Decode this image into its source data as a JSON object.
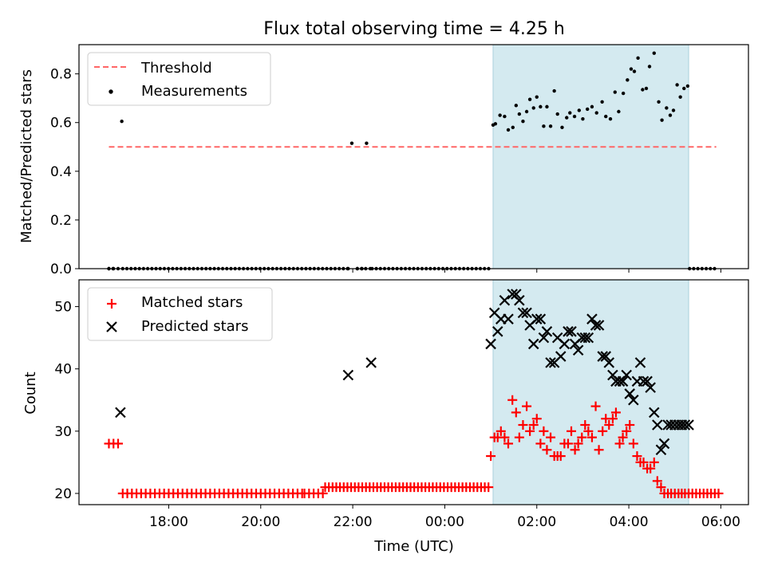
{
  "title": "Flux total observing time = 4.25 h",
  "chart_data": [
    {
      "type": "scatter",
      "ylabel": "Matched/Predicted stars",
      "ylim": [
        0.0,
        0.92
      ],
      "yticks": [
        "0.0",
        "0.2",
        "0.4",
        "0.6",
        "0.8"
      ],
      "x_range_hours": [
        16.05,
        30.6
      ],
      "shaded_interval_hours": [
        25.05,
        29.3
      ],
      "threshold": {
        "name": "Threshold",
        "value": 0.5,
        "x_start_hours": 16.7,
        "x_end_hours": 29.9,
        "color": "#ff6666"
      },
      "legend": {
        "position": "top-left",
        "entries": [
          "Threshold",
          "Measurements"
        ]
      },
      "series": [
        {
          "name": "Measurements",
          "color": "#000000",
          "x_hours": [
            16.7,
            16.8,
            16.9,
            16.98,
            21.9,
            21.98,
            22.1,
            22.2,
            22.3,
            22.38,
            25.05,
            25.1,
            25.2,
            25.3,
            25.38,
            25.48,
            25.55,
            25.62,
            25.7,
            25.78,
            25.85,
            25.93,
            26.0,
            26.08,
            26.15,
            26.22,
            26.3,
            26.38,
            26.45,
            26.55,
            26.65,
            26.72,
            26.82,
            26.92,
            27.0,
            27.1,
            27.2,
            27.3,
            27.42,
            27.5,
            27.6,
            27.7,
            27.78,
            27.88,
            27.97,
            28.05,
            28.12,
            28.2,
            28.3,
            28.38,
            28.45,
            28.55,
            28.65,
            28.72,
            28.82,
            28.9,
            28.97,
            29.05,
            29.12,
            29.2,
            29.28
          ],
          "y": [
            0.0,
            0.0,
            0.0,
            0.605,
            0.0,
            0.515,
            0.0,
            0.0,
            0.515,
            0.0,
            0.59,
            0.595,
            0.63,
            0.625,
            0.57,
            0.58,
            0.67,
            0.635,
            0.605,
            0.645,
            0.695,
            0.66,
            0.705,
            0.665,
            0.585,
            0.665,
            0.585,
            0.73,
            0.635,
            0.58,
            0.62,
            0.64,
            0.625,
            0.65,
            0.615,
            0.655,
            0.665,
            0.64,
            0.685,
            0.625,
            0.615,
            0.725,
            0.645,
            0.72,
            0.775,
            0.82,
            0.81,
            0.865,
            0.735,
            0.74,
            0.83,
            0.885,
            0.685,
            0.61,
            0.66,
            0.63,
            0.65,
            0.755,
            0.705,
            0.74,
            0.75
          ]
        }
      ],
      "zero_runs_hours": [
        [
          16.7,
          16.88
        ],
        [
          17.0,
          21.9
        ],
        [
          22.1,
          22.32
        ],
        [
          22.42,
          25.0
        ],
        [
          29.32,
          29.9
        ]
      ]
    },
    {
      "type": "scatter",
      "ylabel": "Count",
      "xlabel": "Time (UTC)",
      "ylim": [
        18.2,
        54.3
      ],
      "yticks": [
        "20",
        "30",
        "40",
        "50"
      ],
      "xticks": [
        "18:00",
        "20:00",
        "22:00",
        "00:00",
        "02:00",
        "04:00",
        "06:00"
      ],
      "x_range_hours": [
        16.05,
        30.6
      ],
      "shaded_interval_hours": [
        25.05,
        29.3
      ],
      "legend": {
        "position": "top-left",
        "entries": [
          "Matched stars",
          "Predicted stars"
        ]
      },
      "series": [
        {
          "name": "Matched stars",
          "marker": "+",
          "color": "#ff0000",
          "x_hours": [
            16.7,
            16.8,
            16.9,
            25.0,
            25.08,
            25.15,
            25.22,
            25.3,
            25.38,
            25.47,
            25.55,
            25.62,
            25.7,
            25.78,
            25.85,
            25.93,
            26.0,
            26.08,
            26.15,
            26.22,
            26.3,
            26.38,
            26.45,
            26.52,
            26.6,
            26.68,
            26.75,
            26.83,
            26.9,
            26.98,
            27.05,
            27.12,
            27.2,
            27.28,
            27.35,
            27.43,
            27.5,
            27.57,
            27.65,
            27.72,
            27.8,
            27.87,
            27.95,
            28.02,
            28.1,
            28.18,
            28.25,
            28.32,
            28.4,
            28.47,
            28.55,
            28.62,
            28.7,
            28.77,
            28.85,
            28.92,
            29.0,
            29.08,
            29.15,
            29.22,
            29.3
          ],
          "y": [
            28,
            28,
            28,
            26,
            29,
            29,
            30,
            29,
            28,
            35,
            33,
            29,
            31,
            34,
            30,
            31,
            32,
            28,
            30,
            27,
            29,
            26,
            26,
            26,
            28,
            28,
            30,
            27,
            28,
            29,
            31,
            30,
            29,
            34,
            27,
            30,
            32,
            31,
            32,
            33,
            28,
            29,
            30,
            31,
            28,
            26,
            25,
            25,
            24,
            24,
            25,
            22,
            21,
            20,
            20,
            20,
            20,
            20,
            20,
            20,
            20
          ],
          "flat_runs": [
            {
              "x_start_hours": 17.0,
              "x_end_hours": 20.9,
              "value": 20,
              "points": 40
            },
            {
              "x_start_hours": 20.95,
              "x_end_hours": 21.35,
              "value": 20,
              "points": 5
            },
            {
              "x_start_hours": 21.4,
              "x_end_hours": 24.95,
              "value": 21,
              "points": 45
            },
            {
              "x_start_hours": 29.3,
              "x_end_hours": 29.95,
              "value": 20,
              "points": 9
            }
          ]
        },
        {
          "name": "Predicted stars",
          "marker": "x",
          "color": "#000000",
          "x_hours": [
            16.95,
            21.9,
            22.4,
            25.0,
            25.08,
            25.15,
            25.22,
            25.3,
            25.38,
            25.47,
            25.55,
            25.62,
            25.7,
            25.78,
            25.85,
            25.93,
            26.0,
            26.08,
            26.15,
            26.22,
            26.3,
            26.38,
            26.45,
            26.52,
            26.6,
            26.68,
            26.75,
            26.83,
            26.9,
            26.98,
            27.05,
            27.12,
            27.2,
            27.28,
            27.35,
            27.43,
            27.5,
            27.57,
            27.65,
            27.72,
            27.8,
            27.87,
            27.95,
            28.02,
            28.1,
            28.18,
            28.25,
            28.32,
            28.4,
            28.47,
            28.55,
            28.62,
            28.7,
            28.77,
            28.85,
            28.92,
            29.0,
            29.08,
            29.15,
            29.22,
            29.3
          ],
          "y": [
            33,
            39,
            41,
            44,
            49,
            46,
            48,
            51,
            48,
            52,
            52,
            51,
            49,
            49,
            47,
            44,
            48,
            48,
            45,
            46,
            41,
            41,
            45,
            42,
            44,
            46,
            46,
            44,
            43,
            45,
            45,
            45,
            48,
            47,
            47,
            42,
            42,
            41,
            39,
            38,
            38,
            38,
            39,
            36,
            35,
            38,
            41,
            38,
            38,
            37,
            33,
            31,
            27,
            28,
            31,
            31,
            31,
            31,
            31,
            31,
            31
          ]
        }
      ]
    }
  ]
}
